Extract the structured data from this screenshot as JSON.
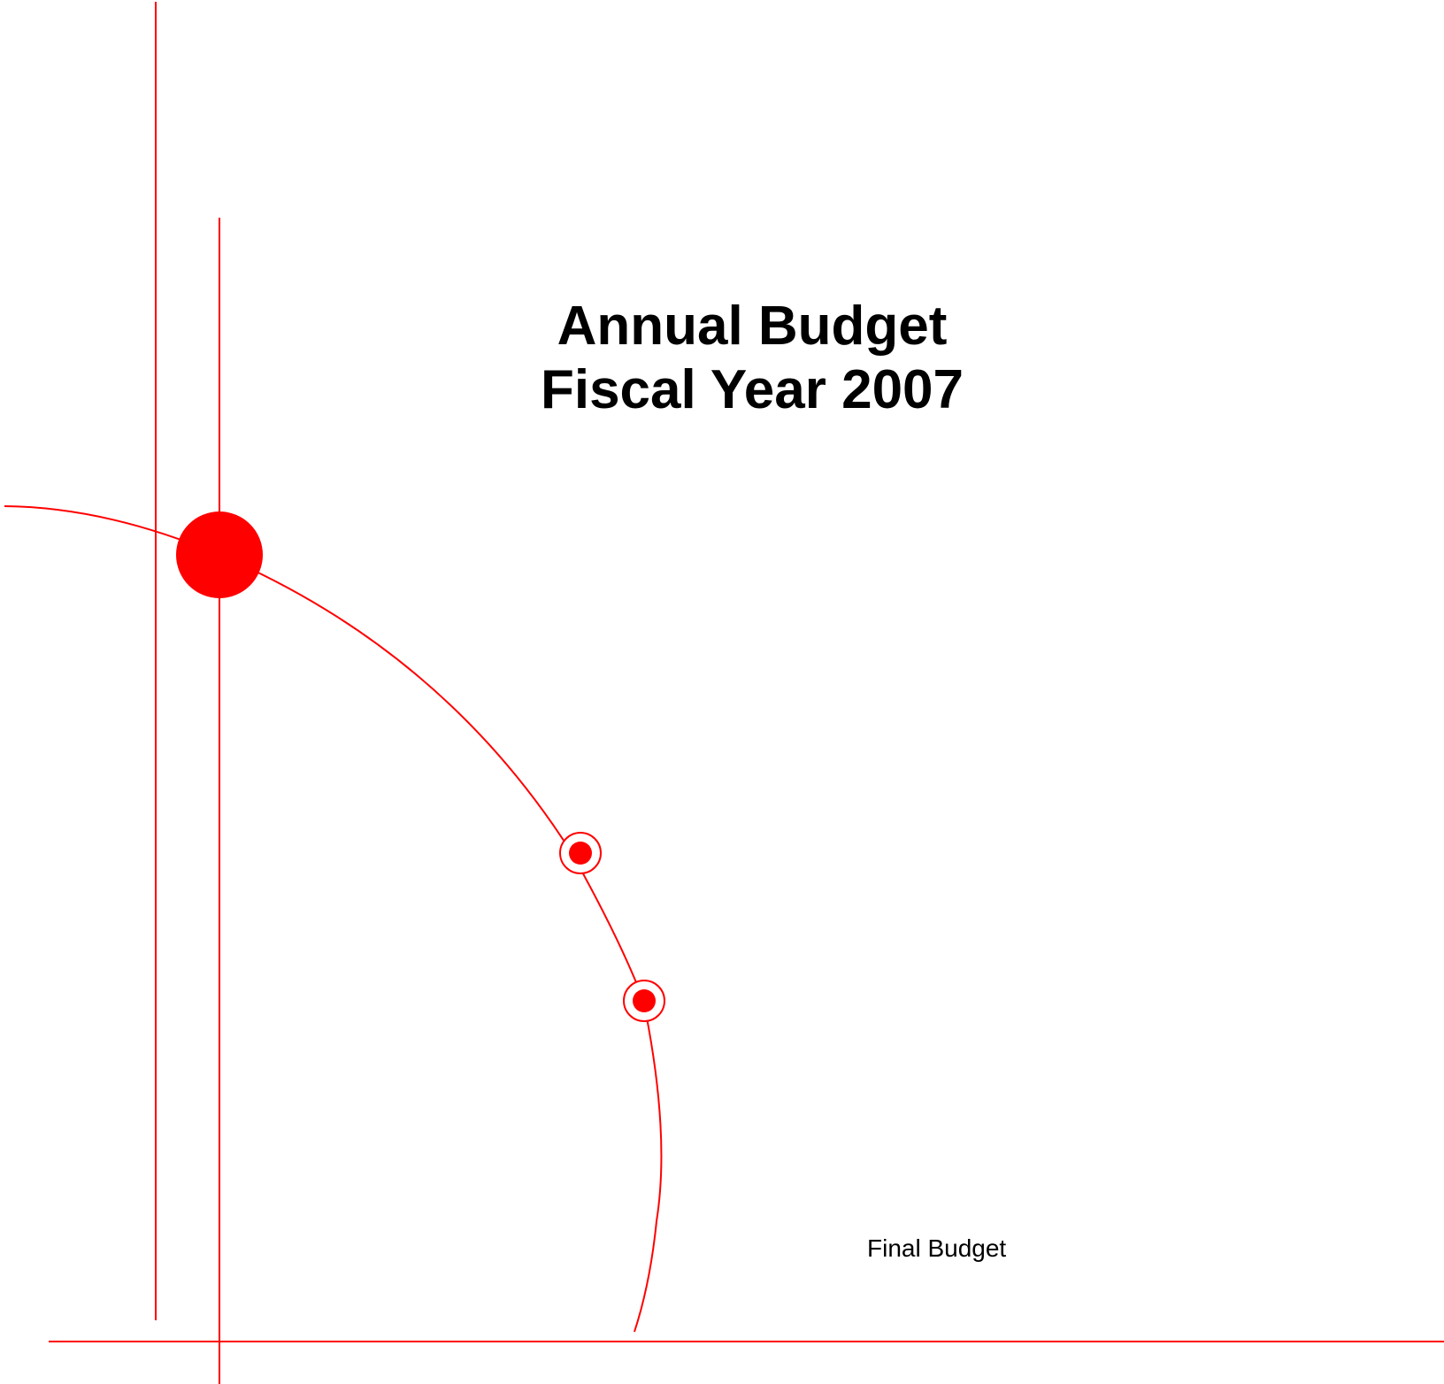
{
  "title": {
    "line1": "Annual Budget",
    "line2": "Fiscal Year 2007"
  },
  "subtitle": "Final Budget"
}
